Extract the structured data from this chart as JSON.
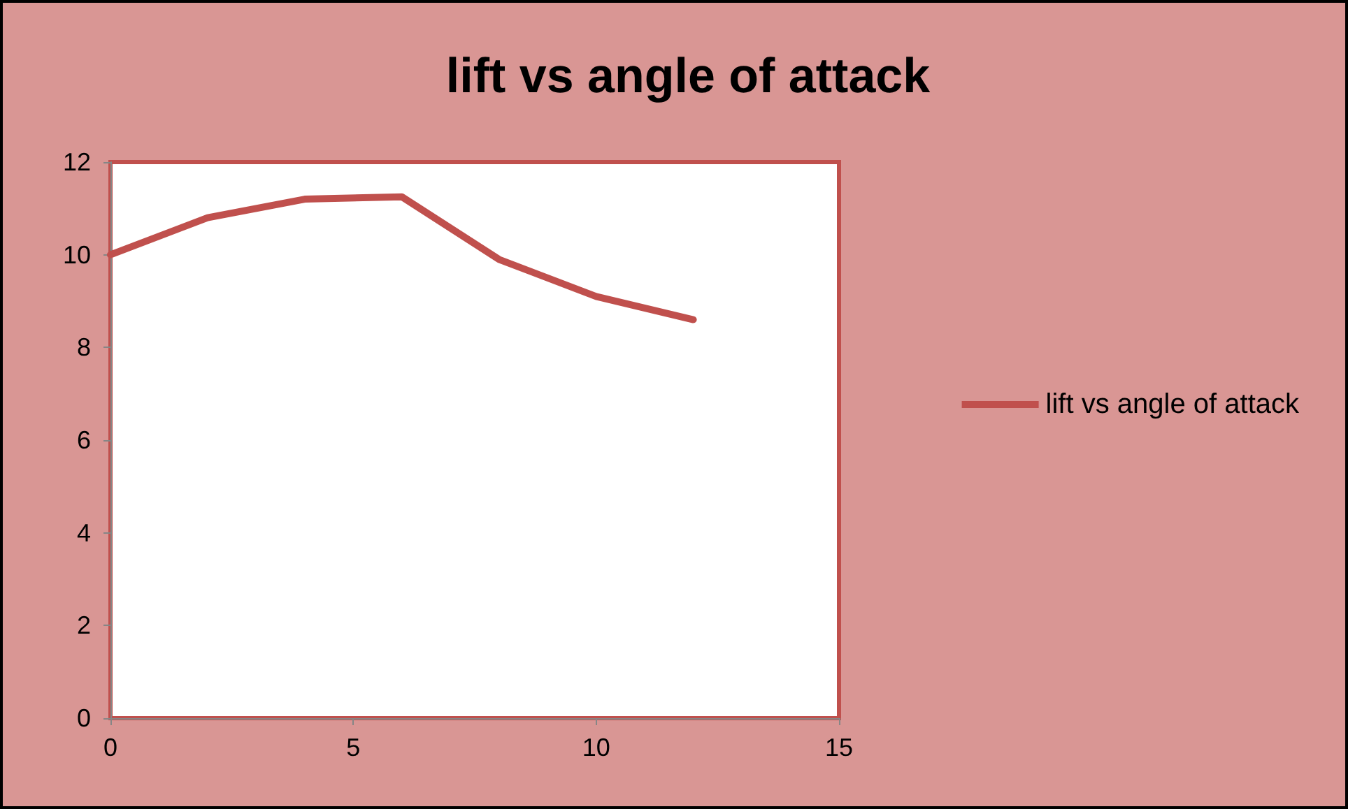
{
  "chart_data": {
    "type": "line",
    "title": "lift vs angle of attack",
    "x": [
      0,
      2,
      4,
      6,
      8,
      10,
      12
    ],
    "series": [
      {
        "name": "lift vs angle of attack",
        "color": "#c0504d",
        "values": [
          10,
          10.8,
          11.2,
          11.25,
          9.9,
          9.1,
          8.6
        ]
      }
    ],
    "xlim": [
      0,
      15
    ],
    "xticks": [
      0,
      5,
      10,
      15
    ],
    "ylim": [
      0,
      12
    ],
    "yticks": [
      0,
      2,
      4,
      6,
      8,
      10,
      12
    ],
    "grid": false,
    "legend": "right",
    "marker": "none",
    "line_style": "solid"
  }
}
